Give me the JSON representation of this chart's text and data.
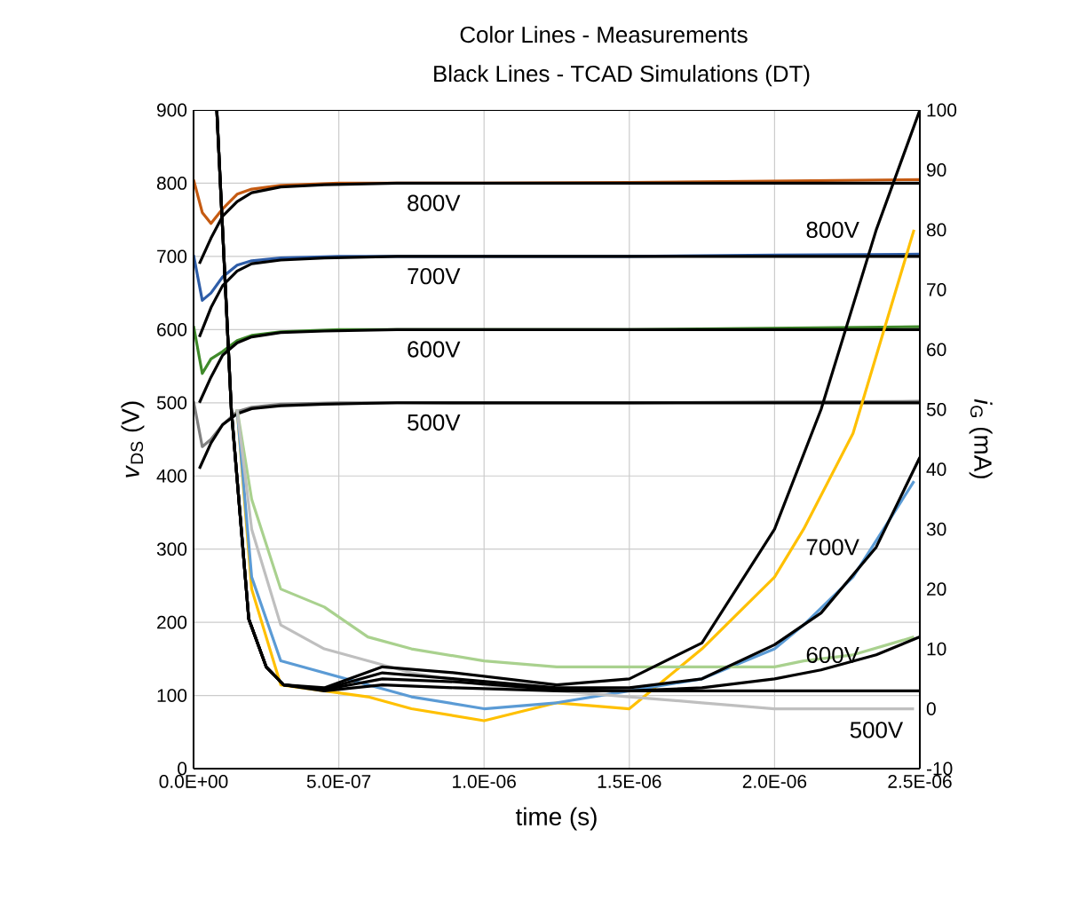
{
  "chart_data": {
    "type": "line",
    "title": "Color Lines - Measurements",
    "subtitle": "Black Lines - TCAD Simulations (DT)",
    "xlabel": "time (s)",
    "ylabel": "*v*$_{DS}$ (V)",
    "y2label": "*i*$_{G}$ (mA)",
    "xlim": [
      0,
      2.5e-06
    ],
    "xticks": [
      {
        "value": 0,
        "label": "0.0E+00"
      },
      {
        "value": 5e-07,
        "label": "5.0E-07"
      },
      {
        "value": 1e-06,
        "label": "1.0E-06"
      },
      {
        "value": 1.5e-06,
        "label": "1.5E-06"
      },
      {
        "value": 2e-06,
        "label": "2.0E-06"
      },
      {
        "value": 2.5e-06,
        "label": "2.5E-06"
      }
    ],
    "ylim": [
      0,
      900
    ],
    "yticks": [
      0,
      100,
      200,
      300,
      400,
      500,
      600,
      700,
      800,
      900
    ],
    "y2lim": [
      -10,
      100
    ],
    "y2ticks": [
      -10,
      0,
      10,
      20,
      30,
      40,
      50,
      60,
      70,
      80,
      90,
      100
    ],
    "grid": true,
    "series": [
      {
        "color": "#c55a11",
        "x": [
          0,
          3e-08,
          6e-08,
          1e-07,
          1.5e-07,
          2e-07,
          3e-07,
          5e-07,
          1e-06,
          1.5e-06,
          2e-06,
          2.5e-06
        ],
        "values": [
          805,
          760,
          745,
          765,
          785,
          792,
          797,
          800,
          800,
          801,
          803,
          805
        ]
      },
      {
        "color": "#2e5da8",
        "x": [
          0,
          3e-08,
          6e-08,
          1e-07,
          1.5e-07,
          2e-07,
          3e-07,
          5e-07,
          1e-06,
          1.5e-06,
          2e-06,
          2.5e-06
        ],
        "values": [
          702,
          640,
          650,
          672,
          688,
          694,
          698,
          700,
          700,
          700,
          702,
          703
        ]
      },
      {
        "color": "#3f8a2a",
        "x": [
          0,
          3e-08,
          6e-08,
          1e-07,
          1.5e-07,
          2e-07,
          3e-07,
          5e-07,
          1e-06,
          1.5e-06,
          2e-06,
          2.5e-06
        ],
        "values": [
          605,
          540,
          560,
          570,
          585,
          592,
          597,
          600,
          600,
          600,
          602,
          604
        ]
      },
      {
        "color": "#808080",
        "x": [
          0,
          3e-08,
          6e-08,
          1e-07,
          1.5e-07,
          2e-07,
          3e-07,
          5e-07,
          1e-06,
          1.5e-06,
          2e-06,
          2.5e-06
        ],
        "values": [
          502,
          440,
          450,
          470,
          488,
          494,
          498,
          500,
          500,
          500,
          501,
          502
        ]
      },
      {
        "name": "800V",
        "color": "#000000",
        "x": [
          2e-08,
          6e-08,
          1e-07,
          1.5e-07,
          2e-07,
          3e-07,
          4.5e-07,
          7e-07,
          1e-06,
          2.5e-06
        ],
        "values": [
          690,
          725,
          755,
          775,
          787,
          795,
          798,
          800,
          800,
          800
        ]
      },
      {
        "name": "700V",
        "color": "#000000",
        "x": [
          2e-08,
          6e-08,
          1e-07,
          1.5e-07,
          2e-07,
          3e-07,
          4.5e-07,
          7e-07,
          1e-06,
          2.5e-06
        ],
        "values": [
          590,
          630,
          660,
          680,
          690,
          695,
          698,
          700,
          700,
          700
        ]
      },
      {
        "name": "600V",
        "color": "#000000",
        "x": [
          2e-08,
          6e-08,
          1e-07,
          1.5e-07,
          2e-07,
          3e-07,
          4.5e-07,
          7e-07,
          1e-06,
          2.5e-06
        ],
        "values": [
          500,
          535,
          565,
          582,
          590,
          596,
          598,
          600,
          600,
          600
        ]
      },
      {
        "name": "500V",
        "color": "#000000",
        "x": [
          2e-08,
          6e-08,
          1e-07,
          1.5e-07,
          2e-07,
          3e-07,
          4.5e-07,
          7e-07,
          1e-06,
          2.5e-06
        ],
        "values": [
          410,
          445,
          470,
          485,
          492,
          496,
          498,
          500,
          500,
          500
        ]
      },
      {
        "axis": "y2",
        "color": "#ffc000",
        "x": [
          1.5e-07,
          2e-07,
          3e-07,
          4.5e-07,
          6e-07,
          7.5e-07,
          1e-06,
          1.25e-06,
          1.5e-06,
          1.75e-06,
          2e-06,
          2.1e-06,
          2.27e-06,
          2.48e-06
        ],
        "values": [
          50,
          20,
          4,
          3,
          2,
          0,
          -2,
          1,
          0,
          10,
          22,
          30,
          46,
          80
        ]
      },
      {
        "axis": "y2",
        "color": "#5b9bd5",
        "x": [
          1.5e-07,
          2e-07,
          3e-07,
          4.5e-07,
          6e-07,
          7.5e-07,
          1e-06,
          1.25e-06,
          1.5e-06,
          1.75e-06,
          2e-06,
          2.1e-06,
          2.27e-06,
          2.48e-06
        ],
        "values": [
          50,
          22,
          8,
          6,
          4,
          2,
          0,
          1,
          3,
          5,
          10,
          14,
          22,
          38
        ]
      },
      {
        "axis": "y2",
        "color": "#a9d18e",
        "x": [
          1.5e-07,
          2e-07,
          3e-07,
          4.5e-07,
          6e-07,
          7.5e-07,
          1e-06,
          1.25e-06,
          1.5e-06,
          1.75e-06,
          2e-06,
          2.1e-06,
          2.27e-06,
          2.48e-06
        ],
        "values": [
          50,
          35,
          20,
          17,
          12,
          10,
          8,
          7,
          7,
          7,
          7,
          8,
          9,
          12
        ]
      },
      {
        "axis": "y2",
        "color": "#bfbfbf",
        "x": [
          1.5e-07,
          2e-07,
          3e-07,
          4.5e-07,
          6e-07,
          7.5e-07,
          1e-06,
          1.25e-06,
          1.5e-06,
          1.75e-06,
          2e-06,
          2.1e-06,
          2.27e-06,
          2.48e-06
        ],
        "values": [
          50,
          30,
          14,
          10,
          8,
          6,
          4,
          3,
          2,
          1,
          0,
          0,
          0,
          0
        ]
      },
      {
        "name": "800V",
        "axis": "y2",
        "color": "#000000",
        "x": [
          8e-08,
          1.3e-07,
          1.9e-07,
          2.5e-07,
          3.1e-07,
          4.5e-07,
          6.5e-07,
          9e-07,
          1.25e-06,
          1.5e-06,
          1.75e-06,
          2e-06,
          2.16e-06,
          2.35e-06,
          2.5e-06
        ],
        "values": [
          100,
          50,
          15,
          7,
          4,
          3.5,
          7,
          6,
          4,
          5,
          11,
          30,
          50,
          80,
          100
        ]
      },
      {
        "name": "700V",
        "axis": "y2",
        "color": "#000000",
        "x": [
          8e-08,
          1.3e-07,
          1.9e-07,
          2.5e-07,
          3.1e-07,
          4.5e-07,
          6.5e-07,
          9e-07,
          1.25e-06,
          1.5e-06,
          1.75e-06,
          2e-06,
          2.16e-06,
          2.35e-06,
          2.5e-06
        ],
        "values": [
          100,
          50,
          15,
          7,
          4,
          3.3,
          6,
          5,
          3.5,
          3.5,
          5,
          10.7,
          16,
          27,
          42
        ]
      },
      {
        "name": "600V",
        "axis": "y2",
        "color": "#000000",
        "x": [
          8e-08,
          1.3e-07,
          1.9e-07,
          2.5e-07,
          3.1e-07,
          4.5e-07,
          6.5e-07,
          9e-07,
          1.25e-06,
          1.5e-06,
          1.75e-06,
          2e-06,
          2.16e-06,
          2.35e-06,
          2.5e-06
        ],
        "values": [
          100,
          50,
          15,
          7,
          4,
          3.2,
          5,
          4.5,
          3.2,
          3,
          3.5,
          5,
          6.5,
          9,
          12
        ]
      },
      {
        "name": "500V",
        "axis": "y2",
        "color": "#000000",
        "x": [
          8e-08,
          1.3e-07,
          1.9e-07,
          2.5e-07,
          3.1e-07,
          4.5e-07,
          6.5e-07,
          9e-07,
          1.25e-06,
          1.5e-06,
          1.75e-06,
          2e-06,
          2.16e-06,
          2.35e-06,
          2.5e-06
        ],
        "values": [
          100,
          50,
          15,
          7,
          4,
          3,
          4,
          3.5,
          3,
          3,
          3,
          3,
          3,
          3,
          3
        ]
      }
    ]
  }
}
